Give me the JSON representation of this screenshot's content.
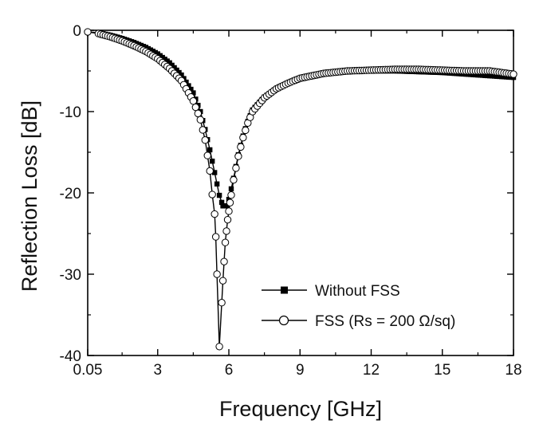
{
  "chart_data": {
    "type": "line",
    "xlabel": "Frequency  [GHz]",
    "ylabel": "Reflection Loss [dB]",
    "xlim": [
      0.05,
      18
    ],
    "ylim": [
      -40,
      0
    ],
    "x_ticks": [
      0.05,
      3,
      6,
      9,
      12,
      15,
      18
    ],
    "x_tick_labels": [
      "0.05",
      "3",
      "6",
      "9",
      "12",
      "15",
      "18"
    ],
    "y_ticks": [
      0,
      -10,
      -20,
      -30,
      -40
    ],
    "y_tick_labels": [
      "0",
      "-10",
      "-20",
      "-30",
      "-40"
    ],
    "grid": false,
    "legend_position": "bottom-right",
    "series": [
      {
        "name": "Without FSS",
        "marker": "filled-square",
        "color": "#000000",
        "points": [
          [
            0.05,
            -0.2
          ],
          [
            0.5,
            -0.3
          ],
          [
            1.0,
            -0.6
          ],
          [
            1.5,
            -1.0
          ],
          [
            2.0,
            -1.5
          ],
          [
            2.5,
            -2.1
          ],
          [
            3.0,
            -2.9
          ],
          [
            3.5,
            -4.0
          ],
          [
            4.0,
            -5.5
          ],
          [
            4.5,
            -7.7
          ],
          [
            4.8,
            -10.0
          ],
          [
            5.0,
            -12.2
          ],
          [
            5.2,
            -14.7
          ],
          [
            5.4,
            -17.5
          ],
          [
            5.6,
            -20.3
          ],
          [
            5.75,
            -21.6
          ],
          [
            5.9,
            -21.6
          ],
          [
            6.0,
            -20.8
          ],
          [
            6.2,
            -18.2
          ],
          [
            6.4,
            -15.3
          ],
          [
            6.6,
            -13.0
          ],
          [
            6.8,
            -11.2
          ],
          [
            7.0,
            -9.8
          ],
          [
            7.5,
            -8.2
          ],
          [
            8.0,
            -7.2
          ],
          [
            8.5,
            -6.5
          ],
          [
            9.0,
            -6.0
          ],
          [
            10.0,
            -5.4
          ],
          [
            11.0,
            -5.1
          ],
          [
            12.0,
            -5.0
          ],
          [
            13.0,
            -5.0
          ],
          [
            14.0,
            -5.1
          ],
          [
            15.0,
            -5.2
          ],
          [
            16.0,
            -5.4
          ],
          [
            17.0,
            -5.6
          ],
          [
            18.0,
            -5.8
          ]
        ]
      },
      {
        "name": "FSS (Rs = 200 Ω/sq)",
        "marker": "open-circle",
        "color": "#000000",
        "points": [
          [
            0.05,
            -0.2
          ],
          [
            0.5,
            -0.4
          ],
          [
            1.0,
            -0.8
          ],
          [
            1.5,
            -1.3
          ],
          [
            2.0,
            -1.9
          ],
          [
            2.5,
            -2.6
          ],
          [
            3.0,
            -3.5
          ],
          [
            3.5,
            -4.7
          ],
          [
            4.0,
            -6.2
          ],
          [
            4.5,
            -8.7
          ],
          [
            4.8,
            -11.0
          ],
          [
            5.0,
            -13.5
          ],
          [
            5.2,
            -17.3
          ],
          [
            5.3,
            -20.2
          ],
          [
            5.4,
            -22.6
          ],
          [
            5.45,
            -25.4
          ],
          [
            5.5,
            -30.0
          ],
          [
            5.6,
            -38.9
          ],
          [
            5.75,
            -30.8
          ],
          [
            5.85,
            -26.1
          ],
          [
            5.95,
            -23.3
          ],
          [
            6.05,
            -21.2
          ],
          [
            6.2,
            -18.4
          ],
          [
            6.4,
            -15.5
          ],
          [
            6.6,
            -13.2
          ],
          [
            6.8,
            -11.4
          ],
          [
            7.0,
            -10.0
          ],
          [
            7.5,
            -8.3
          ],
          [
            8.0,
            -7.2
          ],
          [
            8.5,
            -6.5
          ],
          [
            9.0,
            -5.9
          ],
          [
            10.0,
            -5.3
          ],
          [
            11.0,
            -5.0
          ],
          [
            12.0,
            -4.9
          ],
          [
            13.0,
            -4.8
          ],
          [
            14.0,
            -4.8
          ],
          [
            15.0,
            -4.9
          ],
          [
            16.0,
            -5.0
          ],
          [
            17.0,
            -5.0
          ],
          [
            18.0,
            -5.4
          ]
        ]
      }
    ]
  }
}
